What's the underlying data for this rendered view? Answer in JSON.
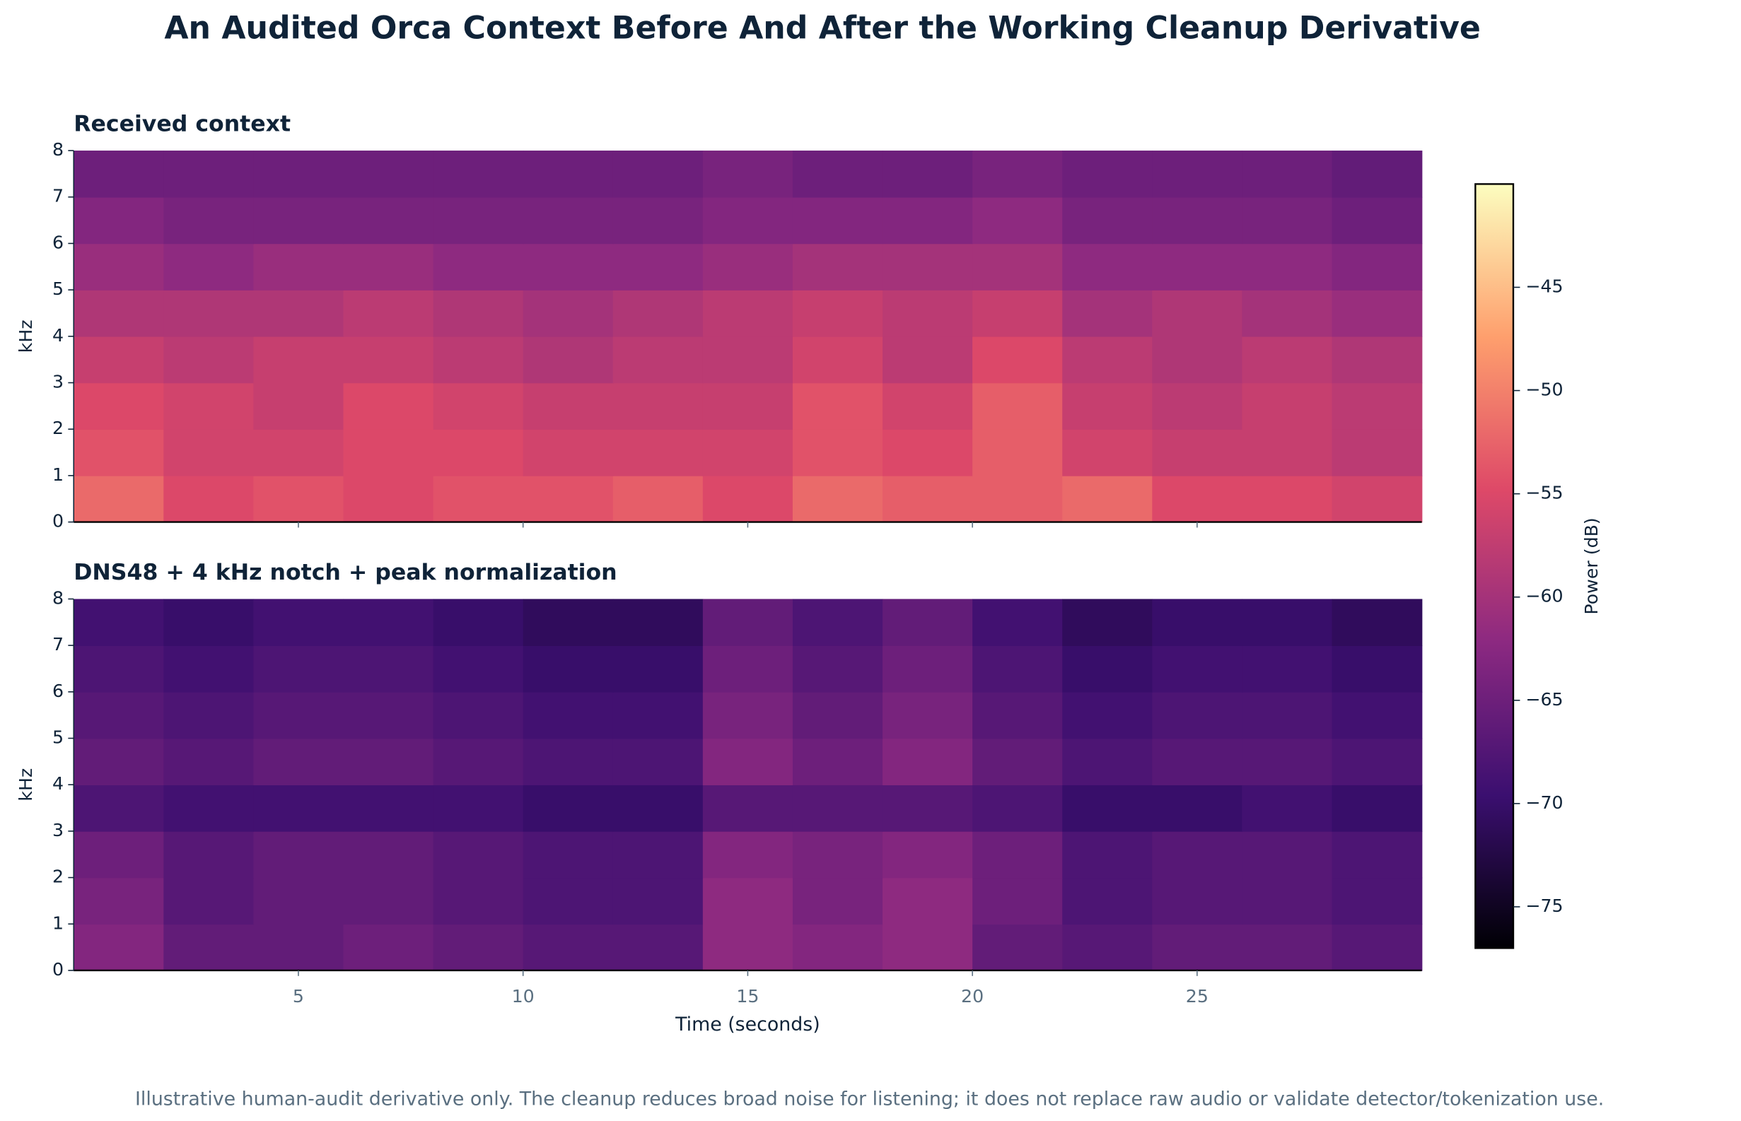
{
  "title": "An Audited Orca Context Before And After the Working Cleanup Derivative",
  "footnote": "Illustrative human-audit derivative only. The cleanup reduces broad noise for listening; it does not replace raw audio or validate detector/tokenization use.",
  "colorbar": {
    "label": "Power (dB)",
    "clim": [
      -77,
      -40
    ],
    "ticks": [
      {
        "value": -45,
        "label": "−45"
      },
      {
        "value": -50,
        "label": "−50"
      },
      {
        "value": -55,
        "label": "−55"
      },
      {
        "value": -60,
        "label": "−60"
      },
      {
        "value": -65,
        "label": "−65"
      },
      {
        "value": -70,
        "label": "−70"
      },
      {
        "value": -75,
        "label": "−75"
      }
    ],
    "colormap": [
      "#000004",
      "#3b0f70",
      "#8c2981",
      "#de4968",
      "#fe9f6d",
      "#fcfdbf"
    ]
  },
  "chart_data": [
    {
      "type": "heatmap",
      "title": "Received context",
      "ylabel": "kHz",
      "x_bins": [
        0,
        2,
        4,
        6,
        8,
        10,
        12,
        14,
        16,
        18,
        20,
        22,
        24,
        26,
        28,
        30
      ],
      "y_bins": [
        0,
        1,
        2,
        3,
        4,
        5,
        6,
        7,
        8
      ],
      "z": [
        [
          -52,
          -55,
          -54,
          -55,
          -54,
          -54,
          -53,
          -55,
          -52,
          -53,
          -53,
          -52,
          -55,
          -55,
          -56
        ],
        [
          -54,
          -56,
          -56,
          -55,
          -55,
          -56,
          -56,
          -56,
          -54,
          -55,
          -53,
          -56,
          -57,
          -57,
          -58
        ],
        [
          -55,
          -56,
          -57,
          -55,
          -56,
          -57,
          -57,
          -57,
          -54,
          -56,
          -53,
          -57,
          -58,
          -57,
          -58
        ],
        [
          -57,
          -58,
          -57,
          -57,
          -58,
          -59,
          -58,
          -58,
          -56,
          -58,
          -55,
          -58,
          -59,
          -58,
          -59
        ],
        [
          -59,
          -59,
          -59,
          -58,
          -59,
          -60,
          -59,
          -58,
          -57,
          -58,
          -57,
          -60,
          -59,
          -60,
          -61
        ],
        [
          -61,
          -62,
          -61,
          -61,
          -62,
          -62,
          -62,
          -61,
          -60,
          -60,
          -60,
          -62,
          -62,
          -62,
          -63
        ],
        [
          -63,
          -64,
          -64,
          -64,
          -64,
          -64,
          -64,
          -63,
          -63,
          -63,
          -62,
          -64,
          -64,
          -64,
          -65
        ],
        [
          -65,
          -65,
          -65,
          -65,
          -65,
          -65,
          -65,
          -64,
          -65,
          -65,
          -64,
          -65,
          -65,
          -65,
          -66
        ]
      ],
      "xlim": [
        0,
        30
      ],
      "ylim": [
        0,
        8
      ],
      "xticks": [
        5,
        10,
        15,
        20,
        25
      ],
      "yticks": [
        0,
        1,
        2,
        3,
        4,
        5,
        6,
        7,
        8
      ]
    },
    {
      "type": "heatmap",
      "title": "DNS48 + 4 kHz notch + peak normalization",
      "ylabel": "kHz",
      "xlabel": "Time (seconds)",
      "x_bins": [
        0,
        2,
        4,
        6,
        8,
        10,
        12,
        14,
        16,
        18,
        20,
        22,
        24,
        26,
        28,
        30
      ],
      "y_bins": [
        0,
        1,
        2,
        3,
        4,
        5,
        6,
        7,
        8
      ],
      "z": [
        [
          -63,
          -66,
          -66,
          -65,
          -66,
          -67,
          -67,
          -62,
          -63,
          -62,
          -66,
          -67,
          -66,
          -66,
          -67
        ],
        [
          -64,
          -67,
          -66,
          -66,
          -67,
          -68,
          -68,
          -62,
          -64,
          -62,
          -65,
          -68,
          -67,
          -67,
          -68
        ],
        [
          -65,
          -67,
          -66,
          -66,
          -67,
          -68,
          -68,
          -63,
          -64,
          -63,
          -65,
          -68,
          -67,
          -67,
          -68
        ],
        [
          -68,
          -69,
          -69,
          -69,
          -69,
          -70,
          -70,
          -67,
          -67,
          -67,
          -68,
          -70,
          -70,
          -69,
          -70
        ],
        [
          -66,
          -67,
          -66,
          -66,
          -67,
          -68,
          -68,
          -63,
          -65,
          -63,
          -66,
          -68,
          -67,
          -67,
          -68
        ],
        [
          -67,
          -68,
          -67,
          -67,
          -68,
          -69,
          -69,
          -64,
          -66,
          -64,
          -67,
          -69,
          -68,
          -68,
          -69
        ],
        [
          -68,
          -69,
          -68,
          -68,
          -69,
          -70,
          -70,
          -65,
          -67,
          -65,
          -68,
          -70,
          -69,
          -69,
          -70
        ],
        [
          -69,
          -70,
          -69,
          -69,
          -70,
          -71,
          -71,
          -66,
          -68,
          -66,
          -69,
          -71,
          -70,
          -70,
          -71
        ]
      ],
      "xlim": [
        0,
        30
      ],
      "ylim": [
        0,
        8
      ],
      "xticks": [
        5,
        10,
        15,
        20,
        25
      ],
      "yticks": [
        0,
        1,
        2,
        3,
        4,
        5,
        6,
        7,
        8
      ]
    }
  ]
}
